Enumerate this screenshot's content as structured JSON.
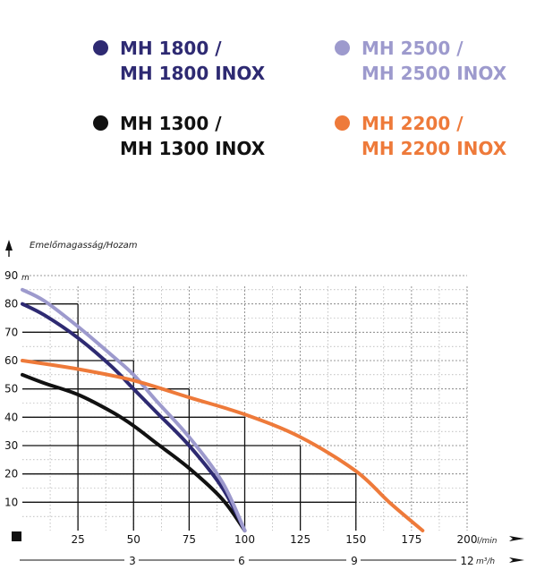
{
  "legend": [
    {
      "line1": "MH 1800 /",
      "line2": "MH 1800 INOX",
      "color": "#2e2a72"
    },
    {
      "line1": "MH 2500 /",
      "line2": "MH 2500 INOX",
      "color": "#9d9acd"
    },
    {
      "line1": "MH 1300 /",
      "line2": "MH 1300 INOX",
      "color": "#111111"
    },
    {
      "line1": "MH 2200 /",
      "line2": "MH 2200 INOX",
      "color": "#ee7a3a"
    }
  ],
  "chart_data": {
    "type": "line",
    "ylabel": "Emelőmagasság/Hozam",
    "y_unit": "m",
    "x_unit": "l/min",
    "x2_unit": "m³/h",
    "xlim": [
      0,
      200
    ],
    "ylim": [
      0,
      90
    ],
    "x_ticks": [
      "25",
      "50",
      "75",
      "100",
      "125",
      "150",
      "175",
      "200"
    ],
    "y_ticks": [
      "10",
      "20",
      "30",
      "40",
      "50",
      "60",
      "70",
      "80",
      "90"
    ],
    "x2_ticks": [
      "3",
      "6",
      "9",
      "12"
    ],
    "grid": true,
    "series": [
      {
        "name": "MH 1800 / MH 1800 INOX",
        "color": "#2e2a72",
        "x": [
          0,
          10,
          25,
          40,
          50,
          60,
          75,
          90,
          100
        ],
        "y": [
          80,
          76,
          68,
          58,
          50,
          42,
          30,
          15,
          0
        ]
      },
      {
        "name": "MH 2500 / MH 2500 INOX",
        "color": "#9d9acd",
        "x": [
          0,
          10,
          25,
          40,
          50,
          60,
          75,
          90,
          100
        ],
        "y": [
          85,
          81,
          72,
          62,
          55,
          46,
          33,
          17,
          0
        ]
      },
      {
        "name": "MH 1300 / MH 1300 INOX",
        "color": "#111111",
        "x": [
          0,
          10,
          25,
          40,
          50,
          60,
          75,
          90,
          100
        ],
        "y": [
          55,
          52,
          48,
          42,
          37,
          31,
          22,
          11,
          0
        ]
      },
      {
        "name": "MH 2200 / MH 2200 INOX",
        "color": "#ee7a3a",
        "x": [
          0,
          25,
          50,
          75,
          100,
          125,
          150,
          165,
          180
        ],
        "y": [
          60,
          57,
          53,
          47,
          41,
          33,
          21,
          10,
          0
        ]
      }
    ]
  }
}
